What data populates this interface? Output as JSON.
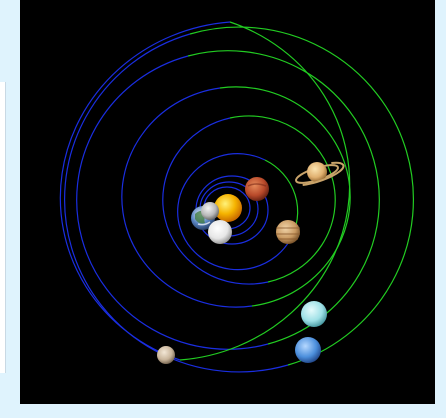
{
  "scene": {
    "background": "#000000",
    "page_background": "#dff3fd",
    "orbit_colors": {
      "blue": "#1a2ee0",
      "green": "#22cc22"
    }
  },
  "bodies": [
    {
      "name": "sun-icon",
      "kind": "star",
      "color": "#f6b400"
    },
    {
      "name": "mercury-icon",
      "kind": "planet",
      "color": "#d9d9d9"
    },
    {
      "name": "venus-icon",
      "kind": "planet",
      "color": "#f2f2f2"
    },
    {
      "name": "earth-icon",
      "kind": "planet",
      "color": "#5b86c4"
    },
    {
      "name": "mars-icon",
      "kind": "planet",
      "color": "#c0502a"
    },
    {
      "name": "jupiter-icon",
      "kind": "planet",
      "color": "#c99a62"
    },
    {
      "name": "saturn-icon",
      "kind": "planet",
      "color": "#e0b070"
    },
    {
      "name": "uranus-icon",
      "kind": "planet",
      "color": "#9ee0e6"
    },
    {
      "name": "neptune-icon",
      "kind": "planet",
      "color": "#4c8fdc"
    },
    {
      "name": "pluto-icon",
      "kind": "dwarf-planet",
      "color": "#c8b49a"
    }
  ]
}
